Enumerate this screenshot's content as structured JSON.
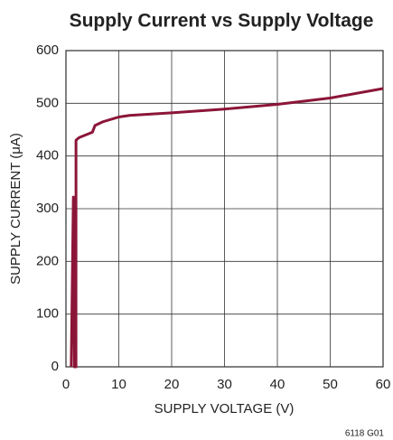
{
  "chart_data": {
    "type": "line",
    "title": "Supply Current vs Supply Voltage",
    "x_label": "SUPPLY VOLTAGE (V)",
    "y_label": "SUPPLY CURRENT (μA)",
    "annotation": "6118 G01",
    "x": [
      1.0,
      1.4,
      1.6,
      1.9,
      1.9,
      2.5,
      5,
      5.5,
      7,
      10,
      12,
      20,
      30,
      40,
      50,
      60
    ],
    "series": [
      {
        "name": "Supply Current",
        "color": "#8b1538",
        "values": [
          0,
          322,
          0,
          0,
          430,
          435,
          445,
          458,
          465,
          474,
          477,
          482,
          489,
          498,
          510,
          528
        ]
      }
    ],
    "xlim": [
      0,
      60
    ],
    "xticks": [
      0,
      10,
      20,
      30,
      40,
      50,
      60
    ],
    "ylim": [
      0,
      600
    ],
    "yticks": [
      0,
      100,
      200,
      300,
      400,
      500,
      600
    ],
    "grid": true
  }
}
